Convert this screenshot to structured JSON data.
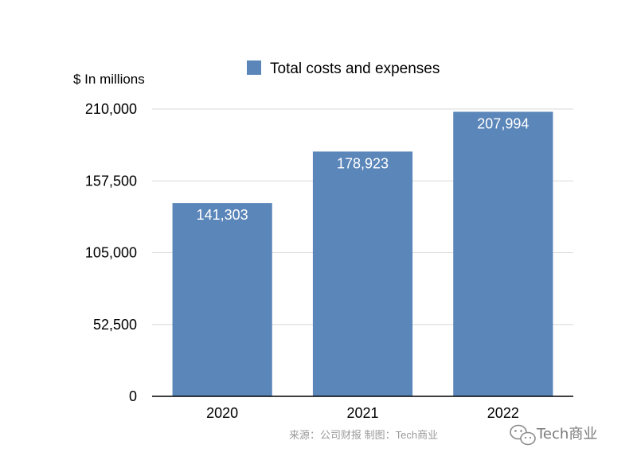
{
  "chart_data": {
    "type": "bar",
    "categories": [
      "2020",
      "2021",
      "2022"
    ],
    "series": [
      {
        "name": "Total costs and expenses",
        "values": [
          141303,
          178923,
          207994
        ],
        "color": "#5b86b9"
      }
    ],
    "data_labels": [
      "141,303",
      "178,923",
      "207,994"
    ],
    "ylabel": "$ In millions",
    "xlabel": "",
    "ylim": [
      0,
      210000
    ],
    "yticks": [
      0,
      52500,
      105000,
      157500,
      210000
    ],
    "ytick_labels": [
      "0",
      "52,500",
      "105,000",
      "157,500",
      "210,000"
    ],
    "grid": true,
    "legend_position": "top-center"
  },
  "footer": {
    "source": "来源：公司财报 制图：Tech商业",
    "watermark": "Tech商业",
    "watermark_icon": "wechat-icon"
  },
  "colors": {
    "bar": "#5b86b9",
    "grid": "#d9d9d9",
    "axis": "#000000"
  }
}
